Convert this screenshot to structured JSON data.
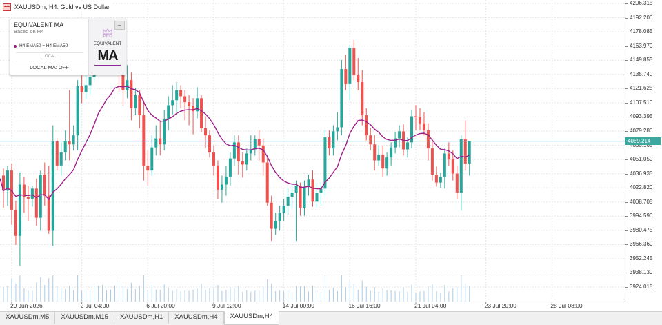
{
  "window": {
    "title": "XAUUSDm, H4:  Gold vs US Dollar"
  },
  "panel": {
    "title": "EQUIVALENT MA",
    "subtitle": "Based on H4",
    "legend": "H4 EMA50 = H4 EMA50",
    "local_label": "LOCAL",
    "status": "LOCAL MA: OFF",
    "minimize": "–",
    "badge_pro": "PRO",
    "badge_equiv": "EQUIVALENT",
    "badge_ma": "MA"
  },
  "current_price_label": "4069.214",
  "tabs": [
    {
      "label": "XAUUSDm,M5",
      "active": false
    },
    {
      "label": "XAUUSDm,M15",
      "active": false
    },
    {
      "label": "XAUUSDm,H1",
      "active": false
    },
    {
      "label": "XAUUSDm,H4",
      "active": false
    },
    {
      "label": "XAUUSDm,H4",
      "active": true
    }
  ],
  "colors": {
    "bull": "#26a69a",
    "bear": "#ef5350",
    "ma": "#9c1e8a",
    "price_line": "#3da89f",
    "volume": "#a9cbe6",
    "grid": "#e6e6e6"
  },
  "chart_data": {
    "type": "candlestick",
    "symbol": "XAUUSDm",
    "timeframe": "H4",
    "y_tick_labels": [
      "4206.315",
      "4192.200",
      "4178.085",
      "4163.970",
      "4149.855",
      "4135.740",
      "4121.625",
      "4107.510",
      "4093.395",
      "4079.280",
      "4065.165",
      "4051.050",
      "4036.935",
      "4022.820",
      "4008.705",
      "3994.590",
      "3980.475",
      "3966.360",
      "3952.245",
      "3938.130",
      "3924.015"
    ],
    "y_ticks": [
      4206.315,
      4192.2,
      4178.085,
      4163.97,
      4149.855,
      4135.74,
      4121.625,
      4107.51,
      4093.395,
      4079.28,
      4065.165,
      4051.05,
      4036.935,
      4022.82,
      4008.705,
      3994.59,
      3980.475,
      3966.36,
      3952.245,
      3938.13,
      3924.015
    ],
    "x_tick_labels": [
      "29 Jun 2026",
      "2 Jul 04:00",
      "6 Jul 20:00",
      "9 Jul 12:00",
      "14 Jul 00:00",
      "16 Jul 16:00",
      "21 Jul 04:00",
      "23 Jul 20:00",
      "28 Jul 08:00"
    ],
    "x_tick_bars": [
      2,
      19,
      35,
      51,
      68,
      84,
      100,
      117,
      133
    ],
    "current_price": 4069.214,
    "ma_label": "H4 EMA50",
    "candles": [
      [
        4035,
        4042,
        4003,
        4020
      ],
      [
        4020,
        4045,
        4005,
        4040
      ],
      [
        4040,
        4047,
        3986,
        4001
      ],
      [
        4001,
        4010,
        3966,
        3975
      ],
      [
        3975,
        4038,
        3945,
        4026
      ],
      [
        4026,
        4034,
        3998,
        4014
      ],
      [
        4014,
        4025,
        3990,
        4012
      ],
      [
        4012,
        4025,
        4004,
        4022
      ],
      [
        4022,
        4032,
        3985,
        3993
      ],
      [
        3993,
        4040,
        3980,
        4036
      ],
      [
        4036,
        4048,
        4005,
        4015
      ],
      [
        4015,
        4045,
        3977,
        3980
      ],
      [
        3980,
        4085,
        3965,
        4069
      ],
      [
        4069,
        4072,
        4040,
        4045
      ],
      [
        4045,
        4068,
        4035,
        4058
      ],
      [
        4058,
        4080,
        4050,
        4069
      ],
      [
        4069,
        4120,
        4050,
        4066
      ],
      [
        4066,
        4085,
        4060,
        4075
      ],
      [
        4075,
        4130,
        4060,
        4124
      ],
      [
        4124,
        4135,
        4107,
        4118
      ],
      [
        4118,
        4136,
        4111,
        4125
      ],
      [
        4125,
        4140,
        4115,
        4133
      ],
      [
        4133,
        4162,
        4130,
        4156
      ],
      [
        4156,
        4185,
        4140,
        4172
      ],
      [
        4172,
        4190,
        4145,
        4152
      ],
      [
        4152,
        4165,
        4138,
        4160
      ],
      [
        4160,
        4172,
        4143,
        4150
      ],
      [
        4150,
        4180,
        4135,
        4168
      ],
      [
        4168,
        4175,
        4118,
        4135
      ],
      [
        4135,
        4150,
        4105,
        4120
      ],
      [
        4120,
        4145,
        4112,
        4130
      ],
      [
        4130,
        4138,
        4090,
        4102
      ],
      [
        4102,
        4122,
        4095,
        4115
      ],
      [
        4115,
        4120,
        4082,
        4095
      ],
      [
        4095,
        4110,
        4030,
        4045
      ],
      [
        4045,
        4060,
        4025,
        4040
      ],
      [
        4040,
        4075,
        4035,
        4063
      ],
      [
        4063,
        4085,
        4055,
        4072
      ],
      [
        4072,
        4090,
        4055,
        4066
      ],
      [
        4066,
        4100,
        4060,
        4091
      ],
      [
        4091,
        4114,
        4080,
        4105
      ],
      [
        4105,
        4125,
        4096,
        4110
      ],
      [
        4110,
        4128,
        4096,
        4120
      ],
      [
        4120,
        4125,
        4102,
        4114
      ],
      [
        4114,
        4120,
        4090,
        4108
      ],
      [
        4108,
        4115,
        4085,
        4104
      ],
      [
        4104,
        4112,
        4076,
        4099
      ],
      [
        4099,
        4123,
        4092,
        4112
      ],
      [
        4112,
        4115,
        4078,
        4082
      ],
      [
        4082,
        4094,
        4062,
        4075
      ],
      [
        4075,
        4080,
        4053,
        4058
      ],
      [
        4058,
        4065,
        4035,
        4045
      ],
      [
        4045,
        4050,
        4012,
        4021
      ],
      [
        4021,
        4035,
        4008,
        4026
      ],
      [
        4026,
        4045,
        4015,
        4034
      ],
      [
        4034,
        4058,
        4025,
        4052
      ],
      [
        4052,
        4075,
        4045,
        4068
      ],
      [
        4068,
        4075,
        4036,
        4049
      ],
      [
        4049,
        4058,
        4033,
        4046
      ],
      [
        4046,
        4062,
        4040,
        4057
      ],
      [
        4057,
        4075,
        4050,
        4061
      ],
      [
        4061,
        4075,
        4055,
        4071
      ],
      [
        4071,
        4080,
        4050,
        4065
      ],
      [
        4065,
        4072,
        4035,
        4048
      ],
      [
        4048,
        4055,
        4005,
        4008
      ],
      [
        4008,
        4015,
        3970,
        3982
      ],
      [
        3982,
        3998,
        3976,
        3990
      ],
      [
        3990,
        4005,
        3980,
        3998
      ],
      [
        3998,
        4012,
        3990,
        4005
      ],
      [
        4005,
        4022,
        3996,
        4014
      ],
      [
        4014,
        4025,
        4002,
        4018
      ],
      [
        4018,
        4030,
        3970,
        4025
      ],
      [
        4025,
        4028,
        3995,
        4003
      ],
      [
        4003,
        4030,
        3995,
        4024
      ],
      [
        4024,
        4036,
        4015,
        4031
      ],
      [
        4031,
        4040,
        4004,
        4009
      ],
      [
        4009,
        4028,
        4003,
        4018
      ],
      [
        4018,
        4028,
        4005,
        4022
      ],
      [
        4022,
        4080,
        4015,
        4073
      ],
      [
        4073,
        4080,
        4055,
        4062
      ],
      [
        4062,
        4085,
        4055,
        4079
      ],
      [
        4079,
        4098,
        4070,
        4083
      ],
      [
        4083,
        4150,
        4075,
        4141
      ],
      [
        4141,
        4155,
        4120,
        4126
      ],
      [
        4126,
        4165,
        4110,
        4162
      ],
      [
        4162,
        4170,
        4130,
        4135
      ],
      [
        4135,
        4152,
        4120,
        4128
      ],
      [
        4128,
        4140,
        4085,
        4095
      ],
      [
        4095,
        4102,
        4070,
        4075
      ],
      [
        4075,
        4082,
        4060,
        4066
      ],
      [
        4066,
        4075,
        4040,
        4050
      ],
      [
        4050,
        4065,
        4045,
        4056
      ],
      [
        4056,
        4065,
        4034,
        4042
      ],
      [
        4042,
        4058,
        4035,
        4053
      ],
      [
        4053,
        4068,
        4045,
        4063
      ],
      [
        4063,
        4078,
        4057,
        4072
      ],
      [
        4072,
        4085,
        4063,
        4079
      ],
      [
        4079,
        4086,
        4055,
        4061
      ],
      [
        4061,
        4073,
        4053,
        4068
      ],
      [
        4068,
        4100,
        4062,
        4094
      ],
      [
        4094,
        4105,
        4080,
        4093
      ],
      [
        4093,
        4102,
        4080,
        4087
      ],
      [
        4087,
        4098,
        4075,
        4080
      ],
      [
        4080,
        4087,
        4050,
        4062
      ],
      [
        4062,
        4070,
        4030,
        4036
      ],
      [
        4036,
        4044,
        4024,
        4028
      ],
      [
        4028,
        4038,
        4023,
        4034
      ],
      [
        4034,
        4062,
        4022,
        4057
      ],
      [
        4057,
        4068,
        4045,
        4051
      ],
      [
        4051,
        4060,
        4030,
        4037
      ],
      [
        4037,
        4045,
        4012,
        4018
      ],
      [
        4018,
        4075,
        4000,
        4071
      ],
      [
        4071,
        4090,
        4040,
        4047
      ],
      [
        4047,
        4069,
        4035,
        4069
      ]
    ]
  }
}
